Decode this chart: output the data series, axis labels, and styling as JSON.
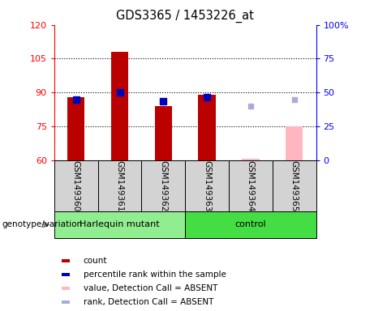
{
  "title": "GDS3365 / 1453226_at",
  "samples": [
    "GSM149360",
    "GSM149361",
    "GSM149362",
    "GSM149363",
    "GSM149364",
    "GSM149365"
  ],
  "ylim_left": [
    60,
    120
  ],
  "ylim_right": [
    0,
    100
  ],
  "yticks_left": [
    60,
    75,
    90,
    105,
    120
  ],
  "yticks_right": [
    0,
    25,
    50,
    75,
    100
  ],
  "count_values": [
    88.0,
    108.0,
    84.0,
    89.0,
    null,
    null
  ],
  "rank_values": [
    87.0,
    90.0,
    86.0,
    88.0,
    null,
    null
  ],
  "absent_value": [
    null,
    null,
    null,
    null,
    60.5,
    75.0
  ],
  "absent_rank": [
    null,
    null,
    null,
    null,
    84.0,
    87.0
  ],
  "bar_color": "#BB0000",
  "rank_color": "#0000BB",
  "absent_bar_color": "#FFB6C1",
  "absent_rank_color": "#AAAADD",
  "bar_width": 0.4,
  "marker_size": 6,
  "background_plot": "#FFFFFF",
  "background_label": "#D3D3D3",
  "group_defs": [
    {
      "label": "Harlequin mutant",
      "start": 0,
      "end": 2,
      "color": "#90EE90"
    },
    {
      "label": "control",
      "start": 3,
      "end": 5,
      "color": "#44DD44"
    }
  ],
  "legend_items": [
    {
      "color": "#BB0000",
      "label": "count"
    },
    {
      "color": "#0000BB",
      "label": "percentile rank within the sample"
    },
    {
      "color": "#FFB6C1",
      "label": "value, Detection Call = ABSENT"
    },
    {
      "color": "#AAAADD",
      "label": "rank, Detection Call = ABSENT"
    }
  ]
}
